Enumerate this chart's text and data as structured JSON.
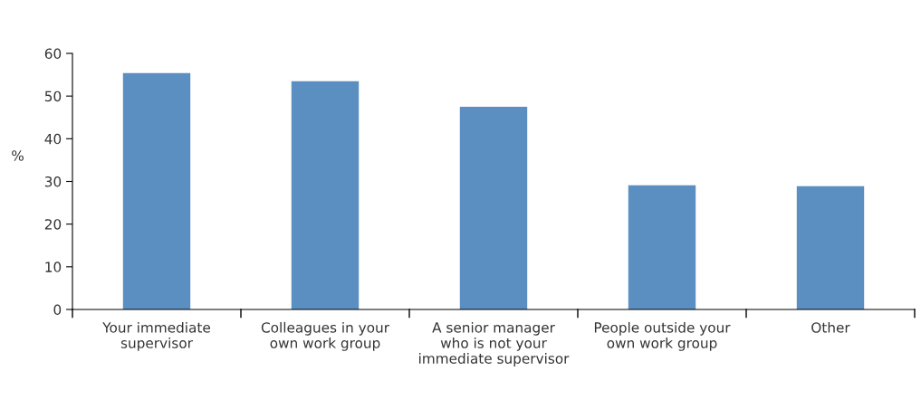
{
  "chart_data": {
    "type": "bar",
    "ylabel": "%",
    "categories": [
      "Your immediate\nsupervisor",
      "Colleagues in your\nown work group",
      "A senior manager\nwho is not your\nimmediate supervisor",
      "People outside your\nown work group",
      "Other"
    ],
    "values": [
      55.4,
      53.5,
      47.5,
      29.1,
      28.9
    ],
    "color": "#5b8fc2",
    "ylim": [
      0,
      60
    ],
    "yticks": [
      0,
      10,
      20,
      30,
      40,
      50,
      60
    ],
    "grid": false,
    "legend": false
  }
}
